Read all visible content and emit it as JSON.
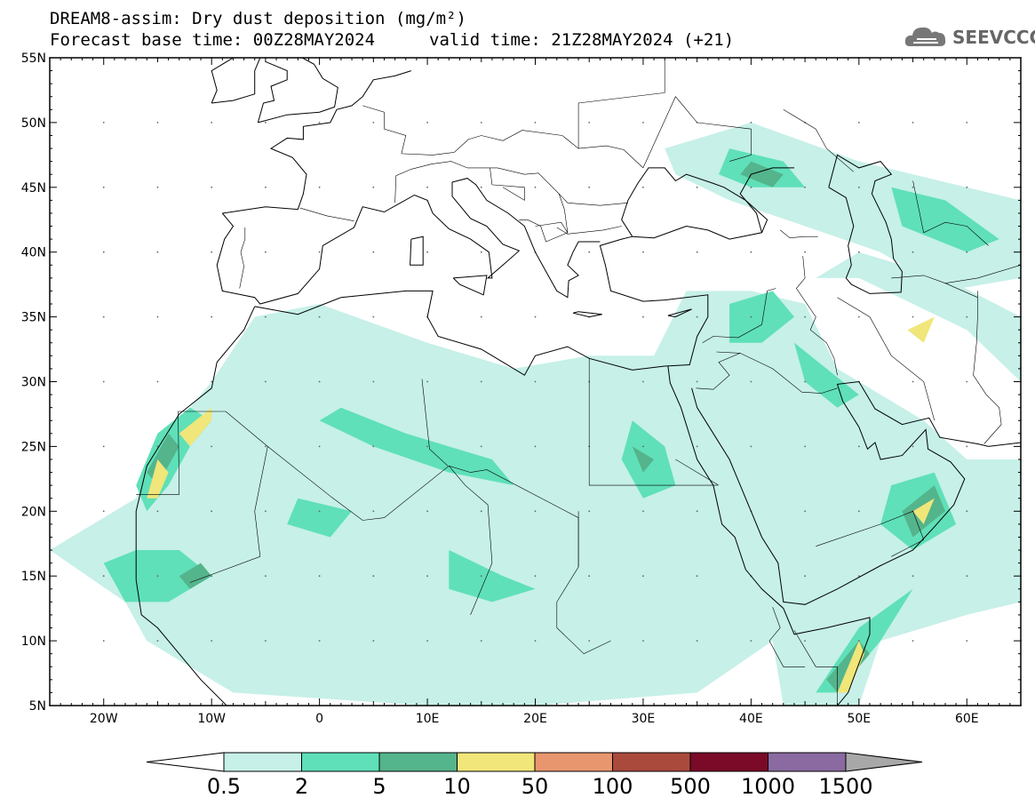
{
  "header": {
    "title_line1": "DREAM8-assim: Dry dust deposition (mg/m²)",
    "title_line2": "Forecast base time: 00Z28MAY2024",
    "valid_time": "valid time: 21Z28MAY2024 (+21)",
    "logo_text": "SEEVCCC",
    "logo_icon": "cloud-icon"
  },
  "map": {
    "projection": "lat-lon",
    "lon_range": [
      -25,
      65
    ],
    "lat_range": [
      5,
      55
    ],
    "lon_ticks": [
      {
        "value": -20,
        "label": "20W"
      },
      {
        "value": -10,
        "label": "10W"
      },
      {
        "value": 0,
        "label": "0"
      },
      {
        "value": 10,
        "label": "10E"
      },
      {
        "value": 20,
        "label": "20E"
      },
      {
        "value": 30,
        "label": "30E"
      },
      {
        "value": 40,
        "label": "40E"
      },
      {
        "value": 50,
        "label": "50E"
      },
      {
        "value": 60,
        "label": "60E"
      }
    ],
    "lat_ticks": [
      {
        "value": 55,
        "label": "55N"
      },
      {
        "value": 50,
        "label": "50N"
      },
      {
        "value": 45,
        "label": "45N"
      },
      {
        "value": 40,
        "label": "40N"
      },
      {
        "value": 35,
        "label": "35N"
      },
      {
        "value": 30,
        "label": "30N"
      },
      {
        "value": 25,
        "label": "25N"
      },
      {
        "value": 20,
        "label": "20N"
      },
      {
        "value": 15,
        "label": "15N"
      },
      {
        "value": 10,
        "label": "10N"
      },
      {
        "value": 5,
        "label": "5N"
      }
    ],
    "grid_dots": true,
    "dust_regions": [
      {
        "level": 0,
        "pts": [
          [
            -25,
            17
          ],
          [
            -18,
            13
          ],
          [
            -16,
            10
          ],
          [
            -8,
            6
          ],
          [
            10,
            5
          ],
          [
            20,
            5
          ],
          [
            35,
            6
          ],
          [
            42,
            10
          ],
          [
            43,
            5
          ],
          [
            50,
            5
          ],
          [
            52,
            10
          ],
          [
            60,
            12
          ],
          [
            65,
            13
          ],
          [
            65,
            24
          ],
          [
            60,
            24
          ],
          [
            56,
            27
          ],
          [
            48,
            31
          ],
          [
            45,
            36
          ],
          [
            40,
            37
          ],
          [
            34,
            37
          ],
          [
            31,
            32
          ],
          [
            25,
            32
          ],
          [
            18,
            31
          ],
          [
            10,
            33
          ],
          [
            0,
            36
          ],
          [
            -6,
            35
          ],
          [
            -10,
            30
          ],
          [
            -13,
            27
          ],
          [
            -15,
            25
          ],
          [
            -17,
            21
          ]
        ]
      },
      {
        "level": 0,
        "pts": [
          [
            32,
            48
          ],
          [
            40,
            50
          ],
          [
            50,
            47
          ],
          [
            55,
            46
          ],
          [
            65,
            44
          ],
          [
            65,
            38
          ],
          [
            58,
            37
          ],
          [
            52,
            40
          ],
          [
            45,
            42
          ],
          [
            38,
            44
          ],
          [
            33,
            46
          ]
        ]
      },
      {
        "level": 0,
        "pts": [
          [
            46,
            38
          ],
          [
            50,
            38
          ],
          [
            55,
            36
          ],
          [
            60,
            34
          ],
          [
            65,
            30
          ],
          [
            65,
            35
          ],
          [
            58,
            38
          ],
          [
            50,
            40
          ]
        ]
      },
      {
        "level": 1,
        "pts": [
          [
            -17,
            22
          ],
          [
            -15,
            26
          ],
          [
            -12,
            28
          ],
          [
            -10,
            27
          ],
          [
            -12,
            25
          ],
          [
            -14,
            22
          ],
          [
            -16,
            20
          ]
        ]
      },
      {
        "level": 1,
        "pts": [
          [
            -20,
            16
          ],
          [
            -18,
            13
          ],
          [
            -14,
            13
          ],
          [
            -10,
            15
          ],
          [
            -13,
            17
          ],
          [
            -17,
            17
          ]
        ]
      },
      {
        "level": 1,
        "pts": [
          [
            0,
            27
          ],
          [
            5,
            25
          ],
          [
            12,
            23
          ],
          [
            18,
            22
          ],
          [
            16,
            24
          ],
          [
            8,
            26
          ],
          [
            2,
            28
          ]
        ]
      },
      {
        "level": 1,
        "pts": [
          [
            29,
            27
          ],
          [
            32,
            25
          ],
          [
            33,
            22
          ],
          [
            30,
            21
          ],
          [
            28,
            24
          ]
        ]
      },
      {
        "level": 1,
        "pts": [
          [
            38,
            36
          ],
          [
            42,
            37
          ],
          [
            44,
            35
          ],
          [
            41,
            33
          ],
          [
            38,
            33
          ]
        ]
      },
      {
        "level": 1,
        "pts": [
          [
            44,
            33
          ],
          [
            47,
            31
          ],
          [
            50,
            29
          ],
          [
            48,
            28
          ],
          [
            45,
            30
          ]
        ]
      },
      {
        "level": 1,
        "pts": [
          [
            53,
            22
          ],
          [
            57,
            23
          ],
          [
            59,
            19
          ],
          [
            55,
            17
          ],
          [
            52,
            19
          ]
        ]
      },
      {
        "level": 1,
        "pts": [
          [
            46,
            6
          ],
          [
            50,
            11
          ],
          [
            55,
            14
          ],
          [
            52,
            10
          ],
          [
            48,
            6
          ]
        ]
      },
      {
        "level": 1,
        "pts": [
          [
            38,
            48
          ],
          [
            43,
            47
          ],
          [
            45,
            45
          ],
          [
            40,
            45
          ],
          [
            37,
            46
          ]
        ]
      },
      {
        "level": 1,
        "pts": [
          [
            53,
            45
          ],
          [
            58,
            44
          ],
          [
            63,
            41
          ],
          [
            60,
            40
          ],
          [
            54,
            42
          ]
        ]
      },
      {
        "level": 1,
        "pts": [
          [
            12,
            17
          ],
          [
            17,
            15
          ],
          [
            20,
            14
          ],
          [
            16,
            13
          ],
          [
            12,
            14
          ]
        ]
      },
      {
        "level": 1,
        "pts": [
          [
            -2,
            21
          ],
          [
            3,
            20
          ],
          [
            1,
            18
          ],
          [
            -3,
            19
          ]
        ]
      },
      {
        "level": 2,
        "pts": [
          [
            -16,
            23
          ],
          [
            -14,
            26
          ],
          [
            -13,
            25
          ],
          [
            -15,
            22
          ]
        ]
      },
      {
        "level": 2,
        "pts": [
          [
            -13,
            15
          ],
          [
            -11,
            16
          ],
          [
            -10,
            15
          ],
          [
            -12,
            14
          ]
        ]
      },
      {
        "level": 2,
        "pts": [
          [
            54,
            20
          ],
          [
            57,
            22
          ],
          [
            58,
            20
          ],
          [
            55,
            18
          ]
        ]
      },
      {
        "level": 2,
        "pts": [
          [
            47,
            7
          ],
          [
            50,
            10
          ],
          [
            51,
            9
          ],
          [
            48,
            6
          ]
        ]
      },
      {
        "level": 2,
        "pts": [
          [
            40,
            47
          ],
          [
            43,
            46
          ],
          [
            42,
            45
          ],
          [
            39,
            46
          ]
        ]
      },
      {
        "level": 2,
        "pts": [
          [
            29,
            25
          ],
          [
            31,
            24
          ],
          [
            30,
            23
          ]
        ]
      },
      {
        "level": 3,
        "pts": [
          [
            -13,
            26
          ],
          [
            -10,
            28
          ],
          [
            -10,
            27
          ],
          [
            -12,
            25
          ]
        ]
      },
      {
        "level": 3,
        "pts": [
          [
            -16,
            21
          ],
          [
            -15,
            24
          ],
          [
            -14,
            23
          ],
          [
            -15,
            21
          ]
        ]
      },
      {
        "level": 3,
        "pts": [
          [
            55,
            20
          ],
          [
            57,
            21
          ],
          [
            56,
            19
          ]
        ]
      },
      {
        "level": 3,
        "pts": [
          [
            54.5,
            34
          ],
          [
            57,
            35
          ],
          [
            56,
            33
          ]
        ]
      },
      {
        "level": 3,
        "pts": [
          [
            48,
            6
          ],
          [
            50,
            10
          ],
          [
            50.5,
            9
          ],
          [
            49,
            6
          ]
        ]
      }
    ],
    "coast_note": "approximate coastline outlines"
  },
  "colorbar": {
    "colors": [
      "#ffffff",
      "#c6f0e8",
      "#5fe0b8",
      "#54b48c",
      "#f0e67a",
      "#e8966e",
      "#aa4a3c",
      "#7a0a28",
      "#8a6aa0",
      "#a8a8a8"
    ],
    "labels": [
      "0.5",
      "2",
      "5",
      "10",
      "50",
      "100",
      "500",
      "1000",
      "1500"
    ]
  }
}
